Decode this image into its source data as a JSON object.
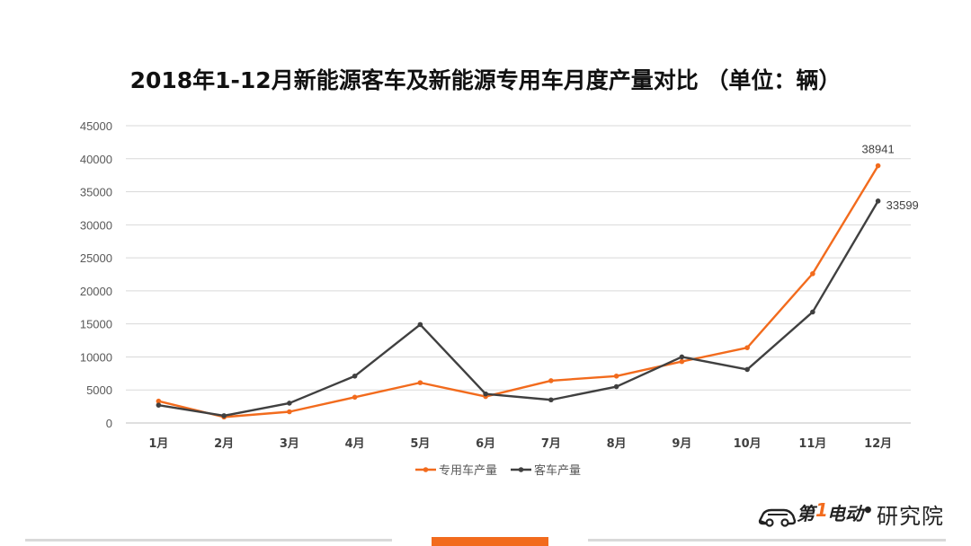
{
  "title": "2018年1-12月新能源客车及新能源专用车月度产量对比 （单位：辆）",
  "logo": {
    "brand_a": "第",
    "brand_num": "1",
    "brand_b": "电动",
    "separator": "•",
    "brand_c": "研究院"
  },
  "colors": {
    "series1": "#f26b1d",
    "series2": "#404040",
    "grid": "#d9d9d9",
    "footer_accent": "#f26b1d",
    "footer_line": "#d9d9d9"
  },
  "chart_data": {
    "type": "line",
    "title": "2018年1-12月新能源客车及新能源专用车月度产量对比 （单位：辆）",
    "categories": [
      "1月",
      "2月",
      "3月",
      "4月",
      "5月",
      "6月",
      "7月",
      "8月",
      "9月",
      "10月",
      "11月",
      "12月"
    ],
    "ylim": [
      0,
      45000
    ],
    "yticks": [
      "0",
      "5000",
      "10000",
      "15000",
      "20000",
      "25000",
      "30000",
      "35000",
      "40000",
      "45000"
    ],
    "grid": true,
    "legend_position": "bottom",
    "series": [
      {
        "name": "专用车产量",
        "values": [
          3300,
          900,
          1700,
          3900,
          6100,
          4000,
          6400,
          7100,
          9300,
          11400,
          22600,
          38941
        ],
        "end_label": "38941"
      },
      {
        "name": "客车产量",
        "values": [
          2700,
          1100,
          3000,
          7100,
          14900,
          4400,
          3500,
          5500,
          10000,
          8100,
          16800,
          33599
        ],
        "end_label": "33599"
      }
    ]
  }
}
